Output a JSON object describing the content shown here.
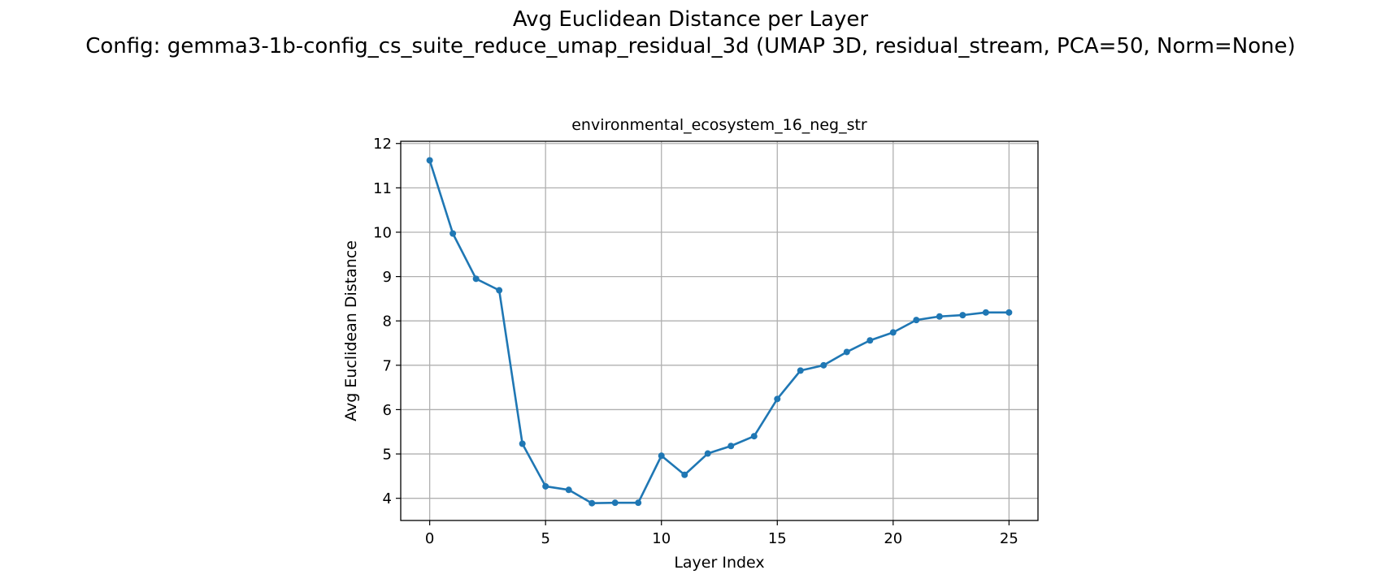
{
  "figure": {
    "title_line1": "Avg Euclidean Distance per Layer",
    "title_line2": "Config: gemma3-1b-config_cs_suite_reduce_umap_residual_3d (UMAP 3D, residual_stream, PCA=50, Norm=None)"
  },
  "chart_data": {
    "type": "line",
    "title": "environmental_ecosystem_16_neg_str",
    "xlabel": "Layer Index",
    "ylabel": "Avg Euclidean Distance",
    "xlim": [
      -1.25,
      26.25
    ],
    "ylim": [
      3.5,
      12.05
    ],
    "xticks": [
      0,
      5,
      10,
      15,
      20,
      25
    ],
    "yticks": [
      4,
      5,
      6,
      7,
      8,
      9,
      10,
      11,
      12
    ],
    "grid": true,
    "color": "#1f77b4",
    "marker": "circle",
    "x": [
      0,
      1,
      2,
      3,
      4,
      5,
      6,
      7,
      8,
      9,
      10,
      11,
      12,
      13,
      14,
      15,
      16,
      17,
      18,
      19,
      20,
      21,
      22,
      23,
      24,
      25
    ],
    "y": [
      11.62,
      9.97,
      8.95,
      8.69,
      5.23,
      4.27,
      4.19,
      3.89,
      3.9,
      3.9,
      4.96,
      4.53,
      5.01,
      5.18,
      5.4,
      6.24,
      6.88,
      7.0,
      7.3,
      7.56,
      7.74,
      8.02,
      8.1,
      8.13,
      8.19,
      8.19
    ]
  }
}
